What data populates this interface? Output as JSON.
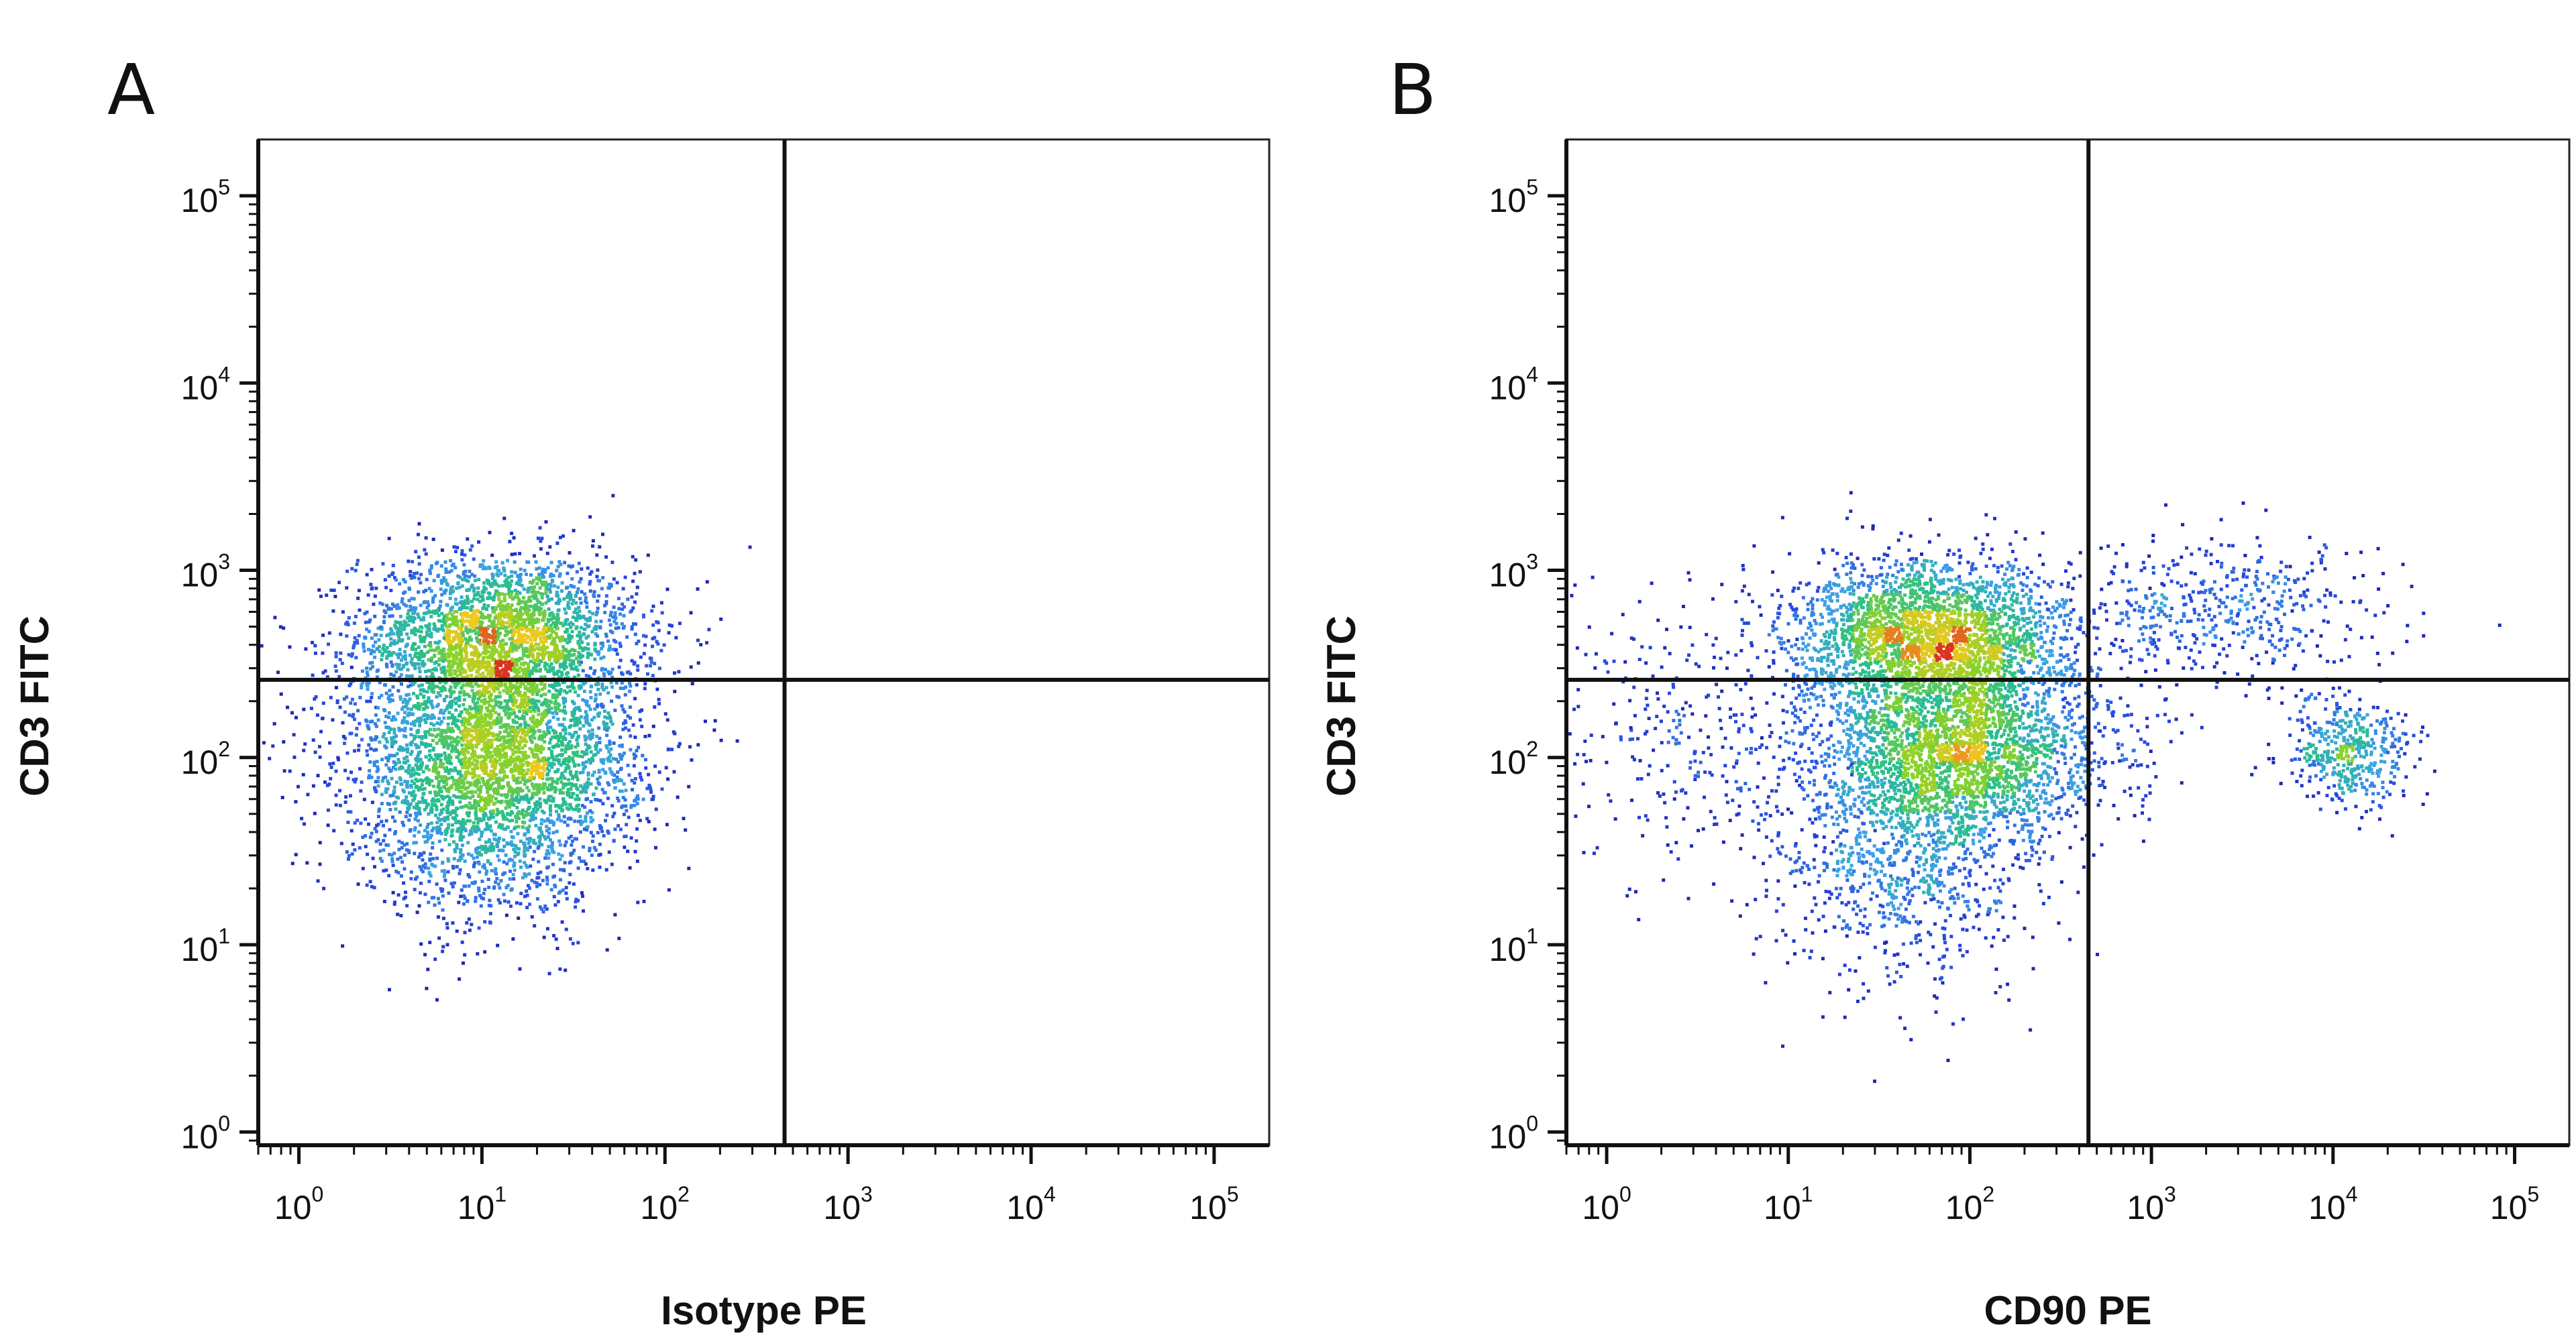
{
  "chart_data": [
    {
      "type": "scatter",
      "panel_label": "A",
      "xlabel": "Isotype PE",
      "ylabel": "CD3 FITC",
      "x_scale": "log",
      "y_scale": "log",
      "xlim": [
        0.6,
        200000
      ],
      "ylim": [
        0.85,
        200000
      ],
      "x_ticks": [
        1,
        10,
        100,
        1000,
        10000,
        100000
      ],
      "y_ticks": [
        1,
        10,
        100,
        1000,
        10000,
        100000
      ],
      "tick_base": "10",
      "tick_exponents": [
        "0",
        "1",
        "2",
        "3",
        "4",
        "5"
      ],
      "quadrant_gate": {
        "x": 450,
        "y": 260
      },
      "grid": false,
      "colormap": "density: blue-cyan-green-yellow-red",
      "populations": [
        {
          "x_center": 12,
          "y_center": 450,
          "x_spread_decades": 0.38,
          "y_spread_decades": 0.22,
          "events": 2600
        },
        {
          "x_center": 12,
          "y_center": 100,
          "x_spread_decades": 0.4,
          "y_spread_decades": 0.28,
          "events": 3000
        },
        {
          "x_center": 10,
          "y_center": 35,
          "x_spread_decades": 0.35,
          "y_spread_decades": 0.3,
          "events": 600
        }
      ]
    },
    {
      "type": "scatter",
      "panel_label": "B",
      "xlabel": "CD90 PE",
      "ylabel": "CD3 FITC",
      "x_scale": "log",
      "y_scale": "log",
      "xlim": [
        0.6,
        200000
      ],
      "ylim": [
        0.85,
        200000
      ],
      "x_ticks": [
        1,
        10,
        100,
        1000,
        10000,
        100000
      ],
      "y_ticks": [
        1,
        10,
        100,
        1000,
        10000,
        100000
      ],
      "tick_base": "10",
      "tick_exponents": [
        "0",
        "1",
        "2",
        "3",
        "4",
        "5"
      ],
      "quadrant_gate": {
        "x": 450,
        "y": 260
      },
      "grid": false,
      "colormap": "density: blue-cyan-green-yellow-red",
      "populations": [
        {
          "x_center": 60,
          "y_center": 450,
          "x_spread_decades": 0.38,
          "y_spread_decades": 0.2,
          "events": 2700
        },
        {
          "x_center": 90,
          "y_center": 110,
          "x_spread_decades": 0.4,
          "y_spread_decades": 0.25,
          "events": 2600
        },
        {
          "x_center": 40,
          "y_center": 30,
          "x_spread_decades": 0.35,
          "y_spread_decades": 0.35,
          "events": 900
        },
        {
          "x_center": 2500,
          "y_center": 600,
          "x_spread_decades": 0.45,
          "y_spread_decades": 0.2,
          "events": 500
        },
        {
          "x_center": 12000,
          "y_center": 110,
          "x_spread_decades": 0.18,
          "y_spread_decades": 0.15,
          "events": 450
        },
        {
          "x_center": 3,
          "y_center": 120,
          "x_spread_decades": 0.4,
          "y_spread_decades": 0.4,
          "events": 300
        }
      ]
    }
  ]
}
